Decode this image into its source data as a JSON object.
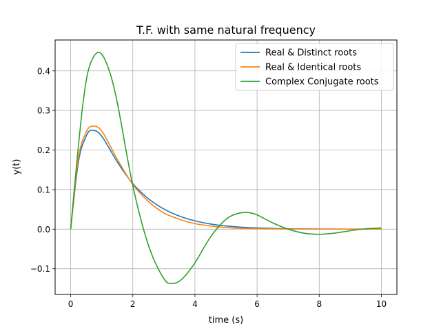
{
  "chart_data": {
    "type": "line",
    "title": "T.F. with same natural frequency",
    "xlabel": "time (s)",
    "ylabel": "y(t)",
    "xlim": [
      -0.5,
      10.5
    ],
    "ylim": [
      -0.165,
      0.478
    ],
    "xticks": [
      0,
      2,
      4,
      6,
      8,
      10
    ],
    "yticks": [
      -0.1,
      0.0,
      0.1,
      0.2,
      0.3,
      0.4
    ],
    "xtick_labels": [
      "0",
      "2",
      "4",
      "6",
      "8",
      "10"
    ],
    "ytick_labels": [
      "−0.1",
      "0.0",
      "0.1",
      "0.2",
      "0.3",
      "0.4"
    ],
    "grid": true,
    "legend_position": "top-right",
    "series": [
      {
        "name": "Real & Distinct roots",
        "color": "#1f77b4",
        "x": [
          0,
          0.25,
          0.5,
          0.7,
          1.0,
          1.5,
          2.0,
          2.5,
          3.0,
          3.5,
          4.0,
          4.5,
          5.0,
          5.5,
          6.0,
          7.0,
          8.0,
          9.0,
          10.0
        ],
        "y": [
          0,
          0.17,
          0.235,
          0.25,
          0.235,
          0.17,
          0.115,
          0.077,
          0.051,
          0.033,
          0.021,
          0.013,
          0.008,
          0.005,
          0.003,
          0.001,
          0.0004,
          0.0002,
          0.0001
        ]
      },
      {
        "name": "Real & Identical roots",
        "color": "#ff7f0e",
        "x": [
          0,
          0.25,
          0.5,
          0.7,
          1.0,
          1.5,
          2.0,
          2.5,
          3.0,
          3.5,
          4.0,
          4.5,
          5.0,
          5.5,
          6.0,
          7.0,
          8.0,
          9.0,
          10.0
        ],
        "y": [
          0,
          0.18,
          0.245,
          0.26,
          0.248,
          0.177,
          0.113,
          0.07,
          0.041,
          0.025,
          0.014,
          0.008,
          0.004,
          0.002,
          0.001,
          0.0004,
          0.0001,
          0,
          0
        ]
      },
      {
        "name": "Complex Conjugate roots",
        "color": "#2ca02c",
        "x": [
          0,
          0.2,
          0.4,
          0.6,
          0.9,
          1.2,
          1.5,
          2.0,
          2.5,
          3.0,
          3.3,
          3.6,
          4.0,
          4.5,
          5.0,
          5.4,
          5.7,
          6.0,
          6.5,
          7.0,
          7.5,
          8.0,
          8.5,
          9.0,
          9.5,
          10.0
        ],
        "y": [
          0,
          0.17,
          0.32,
          0.41,
          0.447,
          0.41,
          0.32,
          0.11,
          -0.04,
          -0.125,
          -0.137,
          -0.125,
          -0.085,
          -0.02,
          0.025,
          0.04,
          0.042,
          0.036,
          0.016,
          0.0,
          -0.01,
          -0.013,
          -0.01,
          -0.004,
          0.001,
          0.003
        ]
      }
    ]
  }
}
